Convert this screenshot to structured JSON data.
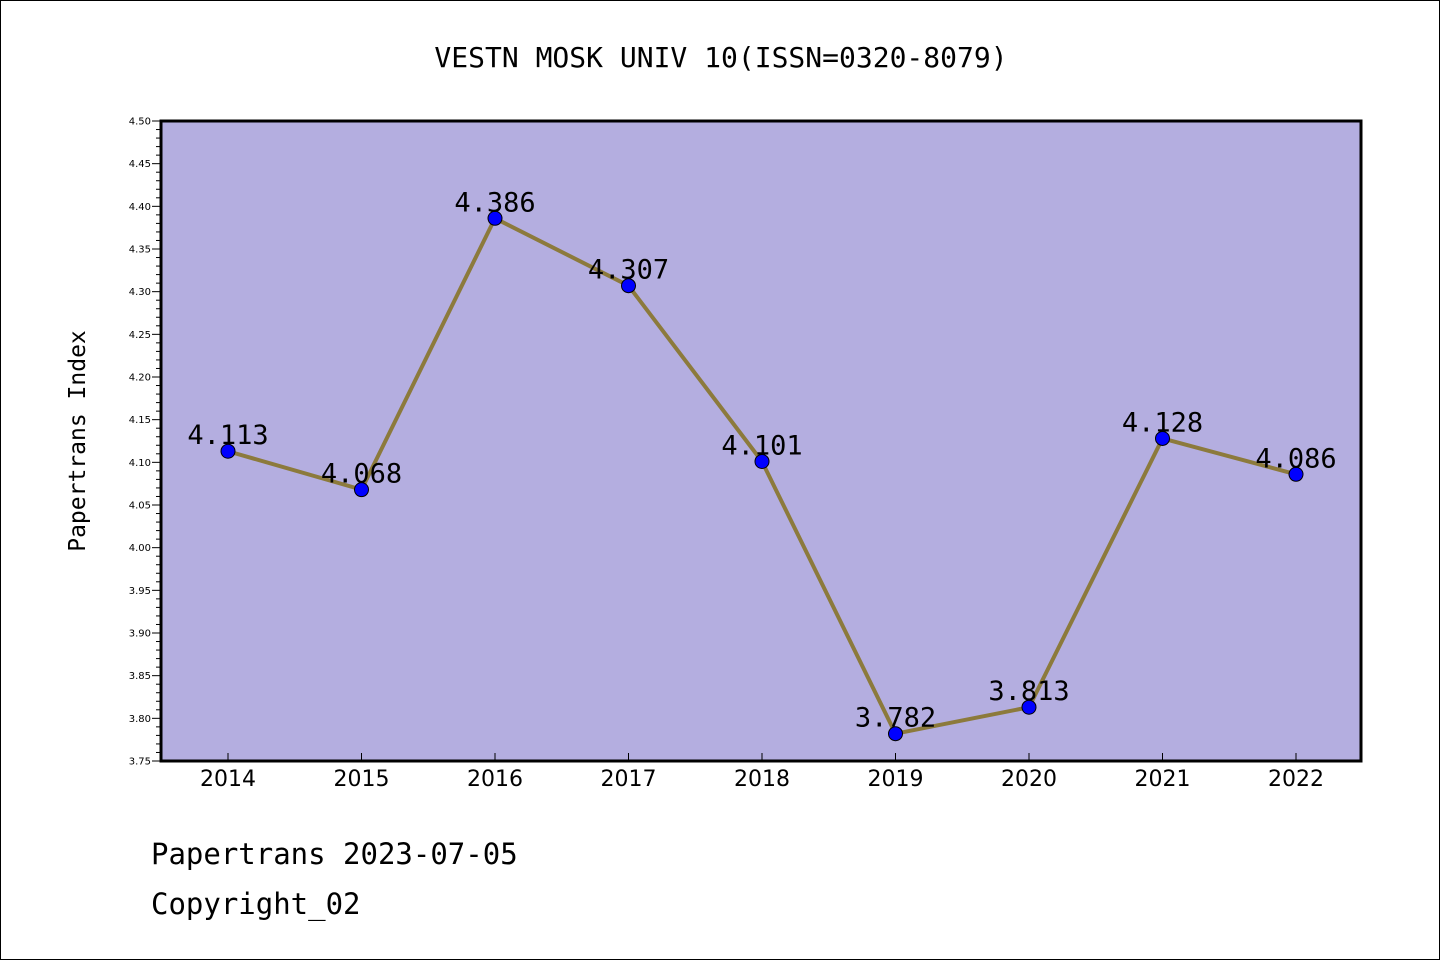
{
  "chart_data": {
    "type": "line",
    "title": "VESTN MOSK UNIV 10(ISSN=0320-8079)",
    "xlabel": "",
    "ylabel": "Papertrans Index",
    "categories": [
      "2014",
      "2015",
      "2016",
      "2017",
      "2018",
      "2019",
      "2020",
      "2021",
      "2022"
    ],
    "series": [
      {
        "values": [
          4.113,
          4.068,
          4.386,
          4.307,
          4.101,
          3.782,
          3.813,
          4.128,
          4.086
        ],
        "data_labels": [
          "4.113",
          "4.068",
          "4.386",
          "4.307",
          "4.101",
          "3.782",
          "3.813",
          "4.128",
          "4.086"
        ]
      }
    ],
    "ylim": [
      3.75,
      4.5
    ],
    "yticks": [
      "3.75",
      "3.80",
      "3.85",
      "3.90",
      "3.95",
      "4.00",
      "4.05",
      "4.10",
      "4.15",
      "4.20",
      "4.25",
      "4.30",
      "4.35",
      "4.40",
      "4.45",
      "4.50"
    ],
    "grid": false,
    "legend": "none",
    "colors": {
      "plot_background": "#b4aee0",
      "line": "#8c7a3c",
      "marker": "#0000ff"
    }
  },
  "footer": {
    "date_text": "Papertrans 2023-07-05",
    "copyright_text": "Copyright_02"
  }
}
